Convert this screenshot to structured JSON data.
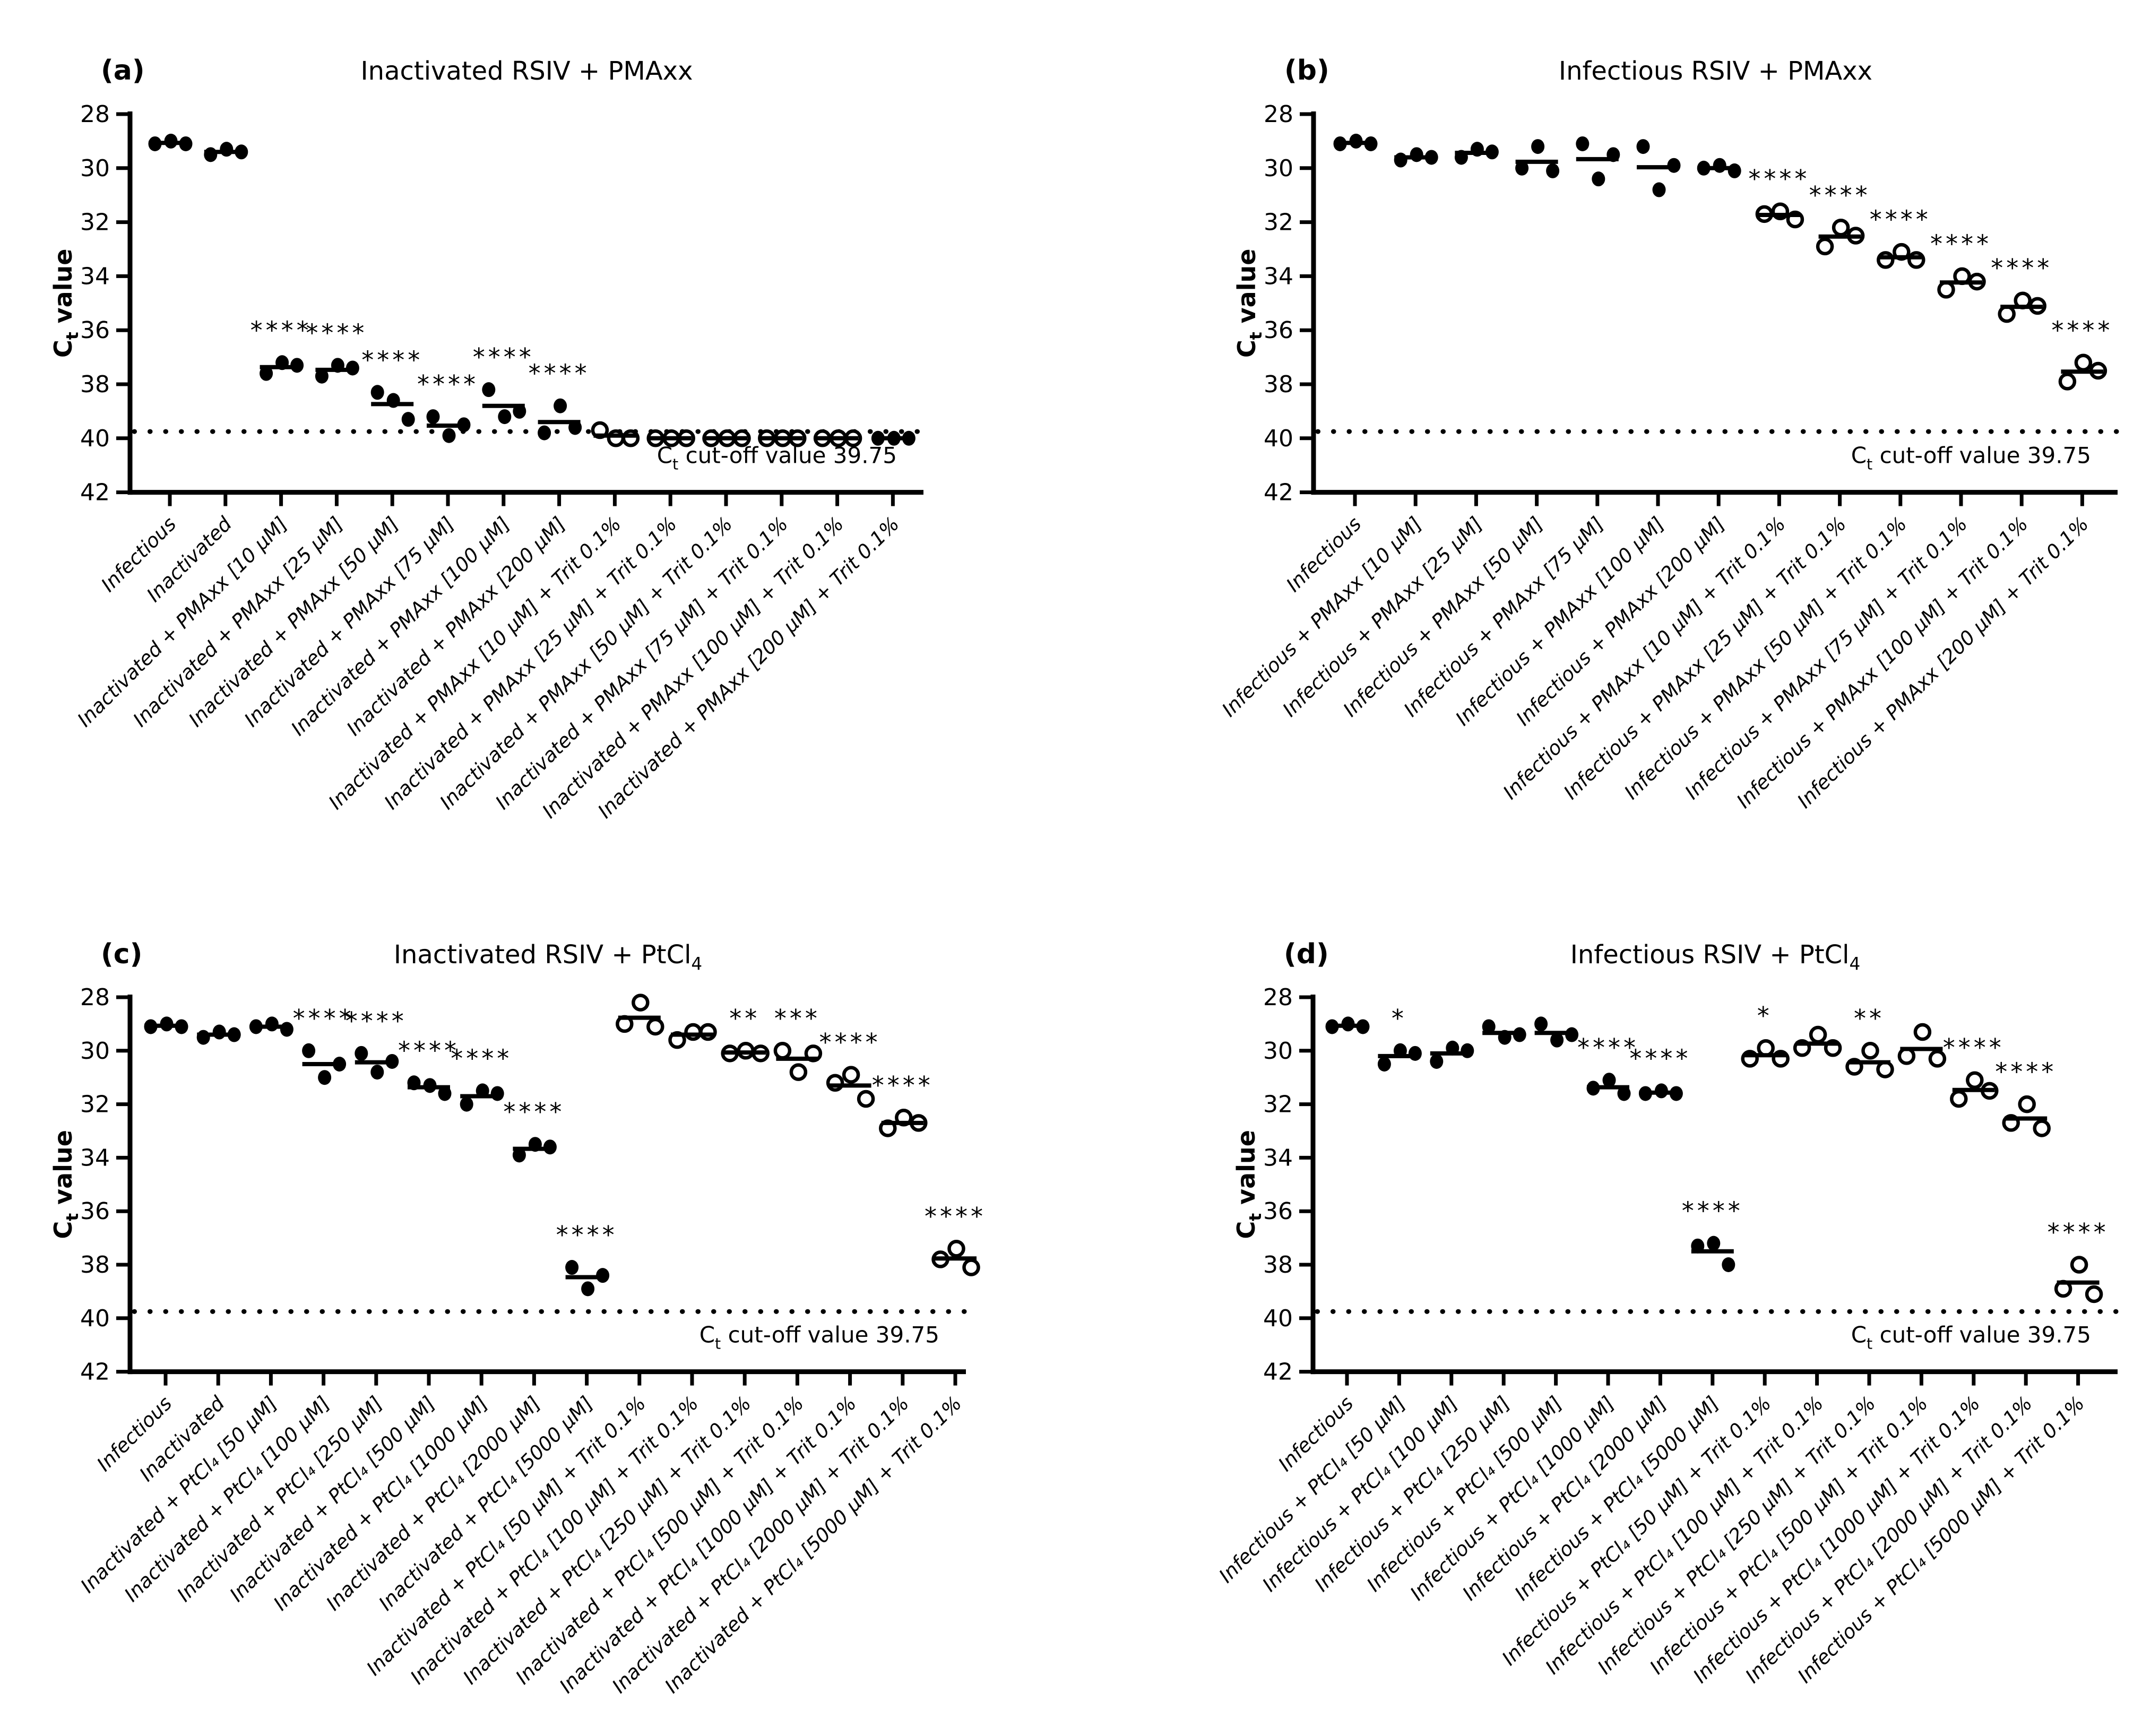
{
  "page": {
    "background": "#ffffff",
    "ink": "#000000"
  },
  "chart_data": [
    {
      "type": "scatter",
      "panel_id": "a",
      "panel_label": "(a)",
      "title": "Inactivated RSIV + PMAxx",
      "title_parts": [
        {
          "t": "Inactivated RSIV + PMAxx"
        }
      ],
      "ylabel": "Ct value",
      "ylabel_parts": [
        {
          "t": "C"
        },
        {
          "t": "t",
          "sub": true
        },
        {
          "t": " value"
        }
      ],
      "ylim": [
        28,
        42
      ],
      "y_inverted": true,
      "yticks": [
        "28",
        "30",
        "32",
        "34",
        "36",
        "38",
        "40",
        "42"
      ],
      "cutoff_value": 39.75,
      "cutoff_label": "Ct cut-off value 39.75",
      "cutoff_parts": [
        {
          "t": "C"
        },
        {
          "t": "t",
          "sub": true
        },
        {
          "t": " cut-off value 39.75"
        }
      ],
      "replicates": 3,
      "groups": [
        {
          "label": "Infectious",
          "marker": "filled",
          "sig": "",
          "values": [
            29.1,
            29.0,
            29.1
          ]
        },
        {
          "label": "Inactivated",
          "marker": "filled",
          "sig": "",
          "values": [
            29.5,
            29.3,
            29.4
          ]
        },
        {
          "label": "Inactivated + PMAxx [10 µM]",
          "marker": "filled",
          "sig": "****",
          "values": [
            37.6,
            37.2,
            37.3
          ]
        },
        {
          "label": "Inactivated + PMAxx [25 µM]",
          "marker": "filled",
          "sig": "****",
          "values": [
            37.7,
            37.3,
            37.4
          ]
        },
        {
          "label": "Inactivated + PMAxx [50 µM]",
          "marker": "filled",
          "sig": "****",
          "values": [
            38.3,
            38.6,
            39.3
          ]
        },
        {
          "label": "Inactivated + PMAxx [75 µM]",
          "marker": "filled",
          "sig": "****",
          "values": [
            39.2,
            39.9,
            39.5
          ]
        },
        {
          "label": "Inactivated + PMAxx [100 µM]",
          "marker": "filled",
          "sig": "****",
          "values": [
            38.2,
            39.2,
            39.0
          ]
        },
        {
          "label": "Inactivated + PMAxx [200 µM]",
          "marker": "filled",
          "sig": "****",
          "values": [
            39.8,
            38.8,
            39.6
          ]
        },
        {
          "label": "Inactivated + PMAxx [10 µM] + Trit 0.1%",
          "marker": "open",
          "sig": "",
          "values": [
            39.7,
            40.0,
            40.0
          ]
        },
        {
          "label": "Inactivated + PMAxx [25 µM] + Trit 0.1%",
          "marker": "open",
          "sig": "",
          "values": [
            40.0,
            40.0,
            40.0
          ]
        },
        {
          "label": "Inactivated + PMAxx [50 µM] + Trit 0.1%",
          "marker": "open",
          "sig": "",
          "values": [
            40.0,
            40.0,
            40.0
          ]
        },
        {
          "label": "Inactivated + PMAxx [75 µM] + Trit 0.1%",
          "marker": "open",
          "sig": "",
          "values": [
            40.0,
            40.0,
            40.0
          ]
        },
        {
          "label": "Inactivated + PMAxx [100 µM] + Trit 0.1%",
          "marker": "open",
          "sig": "",
          "values": [
            40.0,
            40.0,
            40.0
          ]
        },
        {
          "label": "Inactivated + PMAxx [200 µM] + Trit 0.1%",
          "marker": "filled",
          "sig": "",
          "values": [
            40.0,
            40.0,
            40.0
          ]
        }
      ]
    },
    {
      "type": "scatter",
      "panel_id": "b",
      "panel_label": "(b)",
      "title": "Infectious RSIV + PMAxx",
      "title_parts": [
        {
          "t": "Infectious RSIV + PMAxx"
        }
      ],
      "ylabel": "Ct value",
      "ylabel_parts": [
        {
          "t": "C"
        },
        {
          "t": "t",
          "sub": true
        },
        {
          "t": " value"
        }
      ],
      "ylim": [
        28,
        42
      ],
      "y_inverted": true,
      "yticks": [
        "28",
        "30",
        "32",
        "34",
        "36",
        "38",
        "40",
        "42"
      ],
      "cutoff_value": 39.75,
      "cutoff_label": "Ct cut-off value 39.75",
      "cutoff_parts": [
        {
          "t": "C"
        },
        {
          "t": "t",
          "sub": true
        },
        {
          "t": " cut-off value 39.75"
        }
      ],
      "replicates": 3,
      "groups": [
        {
          "label": "Infectious",
          "marker": "filled",
          "sig": "",
          "values": [
            29.1,
            29.0,
            29.1
          ]
        },
        {
          "label": "Infectious + PMAxx [10 µM]",
          "marker": "filled",
          "sig": "",
          "values": [
            29.7,
            29.5,
            29.6
          ]
        },
        {
          "label": "Infectious + PMAxx [25 µM]",
          "marker": "filled",
          "sig": "",
          "values": [
            29.6,
            29.3,
            29.4
          ]
        },
        {
          "label": "Infectious + PMAxx [50 µM]",
          "marker": "filled",
          "sig": "",
          "values": [
            30.0,
            29.2,
            30.1
          ]
        },
        {
          "label": "Infectious + PMAxx [75 µM]",
          "marker": "filled",
          "sig": "",
          "values": [
            29.1,
            30.4,
            29.5
          ]
        },
        {
          "label": "Infectious + PMAxx [100 µM]",
          "marker": "filled",
          "sig": "",
          "values": [
            29.2,
            30.8,
            29.9
          ]
        },
        {
          "label": "Infectious + PMAxx [200 µM]",
          "marker": "filled",
          "sig": "",
          "values": [
            30.0,
            29.9,
            30.1
          ]
        },
        {
          "label": "Infectious + PMAxx [10 µM] + Trit 0.1%",
          "marker": "open",
          "sig": "****",
          "values": [
            31.7,
            31.6,
            31.9
          ]
        },
        {
          "label": "Infectious + PMAxx [25 µM] + Trit 0.1%",
          "marker": "open",
          "sig": "****",
          "values": [
            32.9,
            32.2,
            32.5
          ]
        },
        {
          "label": "Infectious + PMAxx [50 µM] + Trit 0.1%",
          "marker": "open",
          "sig": "****",
          "values": [
            33.4,
            33.1,
            33.4
          ]
        },
        {
          "label": "Infectious + PMAxx [75 µM] + Trit 0.1%",
          "marker": "open",
          "sig": "****",
          "values": [
            34.5,
            34.0,
            34.2
          ]
        },
        {
          "label": "Infectious + PMAxx [100 µM] + Trit 0.1%",
          "marker": "open",
          "sig": "****",
          "values": [
            35.4,
            34.9,
            35.1
          ]
        },
        {
          "label": "Infectious + PMAxx [200 µM] + Trit 0.1%",
          "marker": "open",
          "sig": "****",
          "values": [
            37.9,
            37.2,
            37.5
          ]
        }
      ]
    },
    {
      "type": "scatter",
      "panel_id": "c",
      "panel_label": "(c)",
      "title": "Inactivated RSIV + PtCl₄",
      "title_parts": [
        {
          "t": "Inactivated RSIV + PtCl"
        },
        {
          "t": "4",
          "sub": true
        }
      ],
      "ylabel": "Ct value",
      "ylabel_parts": [
        {
          "t": "C"
        },
        {
          "t": "t",
          "sub": true
        },
        {
          "t": " value"
        }
      ],
      "ylim": [
        28,
        42
      ],
      "y_inverted": true,
      "yticks": [
        "28",
        "30",
        "32",
        "34",
        "36",
        "38",
        "40",
        "42"
      ],
      "cutoff_value": 39.75,
      "cutoff_label": "Ct cut-off value 39.75",
      "cutoff_parts": [
        {
          "t": "C"
        },
        {
          "t": "t",
          "sub": true
        },
        {
          "t": " cut-off value 39.75"
        }
      ],
      "replicates": 3,
      "groups": [
        {
          "label": "Infectious",
          "marker": "filled",
          "sig": "",
          "values": [
            29.1,
            29.0,
            29.1
          ]
        },
        {
          "label": "Inactivated",
          "marker": "filled",
          "sig": "",
          "values": [
            29.5,
            29.3,
            29.4
          ]
        },
        {
          "label": "Inactivated + PtCl₄ [50 µM]",
          "marker": "filled",
          "sig": "",
          "values": [
            29.1,
            29.0,
            29.2
          ]
        },
        {
          "label": "Inactivated + PtCl₄ [100 µM]",
          "marker": "filled",
          "sig": "****",
          "values": [
            30.0,
            31.0,
            30.5
          ]
        },
        {
          "label": "Inactivated + PtCl₄ [250 µM]",
          "marker": "filled",
          "sig": "****",
          "values": [
            30.1,
            30.8,
            30.4
          ]
        },
        {
          "label": "Inactivated + PtCl₄ [500 µM]",
          "marker": "filled",
          "sig": "****",
          "values": [
            31.2,
            31.3,
            31.6
          ]
        },
        {
          "label": "Inactivated + PtCl₄ [1000 µM]",
          "marker": "filled",
          "sig": "****",
          "values": [
            32.0,
            31.5,
            31.6
          ]
        },
        {
          "label": "Inactivated + PtCl₄ [2000 µM]",
          "marker": "filled",
          "sig": "****",
          "values": [
            33.9,
            33.5,
            33.6
          ]
        },
        {
          "label": "Inactivated + PtCl₄ [5000 µM]",
          "marker": "filled",
          "sig": "****",
          "values": [
            38.1,
            38.9,
            38.4
          ]
        },
        {
          "label": "Inactivated + PtCl₄ [50 µM] + Trit 0.1%",
          "marker": "open",
          "sig": "",
          "values": [
            29.0,
            28.2,
            29.1
          ]
        },
        {
          "label": "Inactivated + PtCl₄ [100 µM] + Trit 0.1%",
          "marker": "open",
          "sig": "",
          "values": [
            29.6,
            29.3,
            29.3
          ]
        },
        {
          "label": "Inactivated + PtCl₄ [250 µM] + Trit 0.1%",
          "marker": "open",
          "sig": "**",
          "values": [
            30.1,
            30.0,
            30.1
          ]
        },
        {
          "label": "Inactivated + PtCl₄ [500 µM] + Trit 0.1%",
          "marker": "open",
          "sig": "***",
          "values": [
            30.0,
            30.8,
            30.1
          ]
        },
        {
          "label": "Inactivated + PtCl₄ [1000 µM] + Trit 0.1%",
          "marker": "open",
          "sig": "****",
          "values": [
            31.2,
            30.9,
            31.8
          ]
        },
        {
          "label": "Inactivated + PtCl₄ [2000 µM] + Trit 0.1%",
          "marker": "open",
          "sig": "****",
          "values": [
            32.9,
            32.5,
            32.7
          ]
        },
        {
          "label": "Inactivated + PtCl₄ [5000 µM] + Trit 0.1%",
          "marker": "open",
          "sig": "****",
          "values": [
            37.8,
            37.4,
            38.1
          ]
        }
      ]
    },
    {
      "type": "scatter",
      "panel_id": "d",
      "panel_label": "(d)",
      "title": "Infectious RSIV + PtCl₄",
      "title_parts": [
        {
          "t": "Infectious RSIV + PtCl"
        },
        {
          "t": "4",
          "sub": true
        }
      ],
      "ylabel": "Ct value",
      "ylabel_parts": [
        {
          "t": "C"
        },
        {
          "t": "t",
          "sub": true
        },
        {
          "t": " value"
        }
      ],
      "ylim": [
        28,
        42
      ],
      "y_inverted": true,
      "yticks": [
        "28",
        "30",
        "32",
        "34",
        "36",
        "38",
        "40",
        "42"
      ],
      "cutoff_value": 39.75,
      "cutoff_label": "Ct cut-off value 39.75",
      "cutoff_parts": [
        {
          "t": "C"
        },
        {
          "t": "t",
          "sub": true
        },
        {
          "t": " cut-off value 39.75"
        }
      ],
      "replicates": 3,
      "groups": [
        {
          "label": "Infectious",
          "marker": "filled",
          "sig": "",
          "values": [
            29.1,
            29.0,
            29.1
          ]
        },
        {
          "label": "Infectious + PtCl₄ [50 µM]",
          "marker": "filled",
          "sig": "*",
          "values": [
            30.5,
            30.0,
            30.1
          ]
        },
        {
          "label": "Infectious + PtCl₄ [100 µM]",
          "marker": "filled",
          "sig": "",
          "values": [
            30.4,
            29.9,
            30.0
          ]
        },
        {
          "label": "Infectious + PtCl₄ [250 µM]",
          "marker": "filled",
          "sig": "",
          "values": [
            29.1,
            29.5,
            29.4
          ]
        },
        {
          "label": "Infectious + PtCl₄ [500 µM]",
          "marker": "filled",
          "sig": "",
          "values": [
            29.0,
            29.6,
            29.4
          ]
        },
        {
          "label": "Infectious + PtCl₄ [1000 µM]",
          "marker": "filled",
          "sig": "****",
          "values": [
            31.4,
            31.1,
            31.6
          ]
        },
        {
          "label": "Infectious + PtCl₄ [2000 µM]",
          "marker": "filled",
          "sig": "****",
          "values": [
            31.6,
            31.5,
            31.6
          ]
        },
        {
          "label": "Infectious + PtCl₄ [5000 µM]",
          "marker": "filled",
          "sig": "****",
          "values": [
            37.3,
            37.2,
            38.0
          ]
        },
        {
          "label": "Infectious + PtCl₄ [50 µM] + Trit 0.1%",
          "marker": "open",
          "sig": "*",
          "values": [
            30.3,
            29.9,
            30.3
          ]
        },
        {
          "label": "Infectious + PtCl₄ [100 µM] + Trit 0.1%",
          "marker": "open",
          "sig": "",
          "values": [
            29.9,
            29.4,
            29.9
          ]
        },
        {
          "label": "Infectious + PtCl₄ [250 µM] + Trit 0.1%",
          "marker": "open",
          "sig": "**",
          "values": [
            30.6,
            30.0,
            30.7
          ]
        },
        {
          "label": "Infectious + PtCl₄ [500 µM] + Trit 0.1%",
          "marker": "open",
          "sig": "",
          "values": [
            30.2,
            29.3,
            30.3
          ]
        },
        {
          "label": "Infectious + PtCl₄ [1000 µM] + Trit 0.1%",
          "marker": "open",
          "sig": "****",
          "values": [
            31.8,
            31.1,
            31.5
          ]
        },
        {
          "label": "Infectious + PtCl₄ [2000 µM] + Trit 0.1%",
          "marker": "open",
          "sig": "****",
          "values": [
            32.7,
            32.0,
            32.9
          ]
        },
        {
          "label": "Infectious + PtCl₄ [5000 µM] + Trit 0.1%",
          "marker": "open",
          "sig": "****",
          "values": [
            38.9,
            38.0,
            39.1
          ]
        }
      ]
    }
  ]
}
